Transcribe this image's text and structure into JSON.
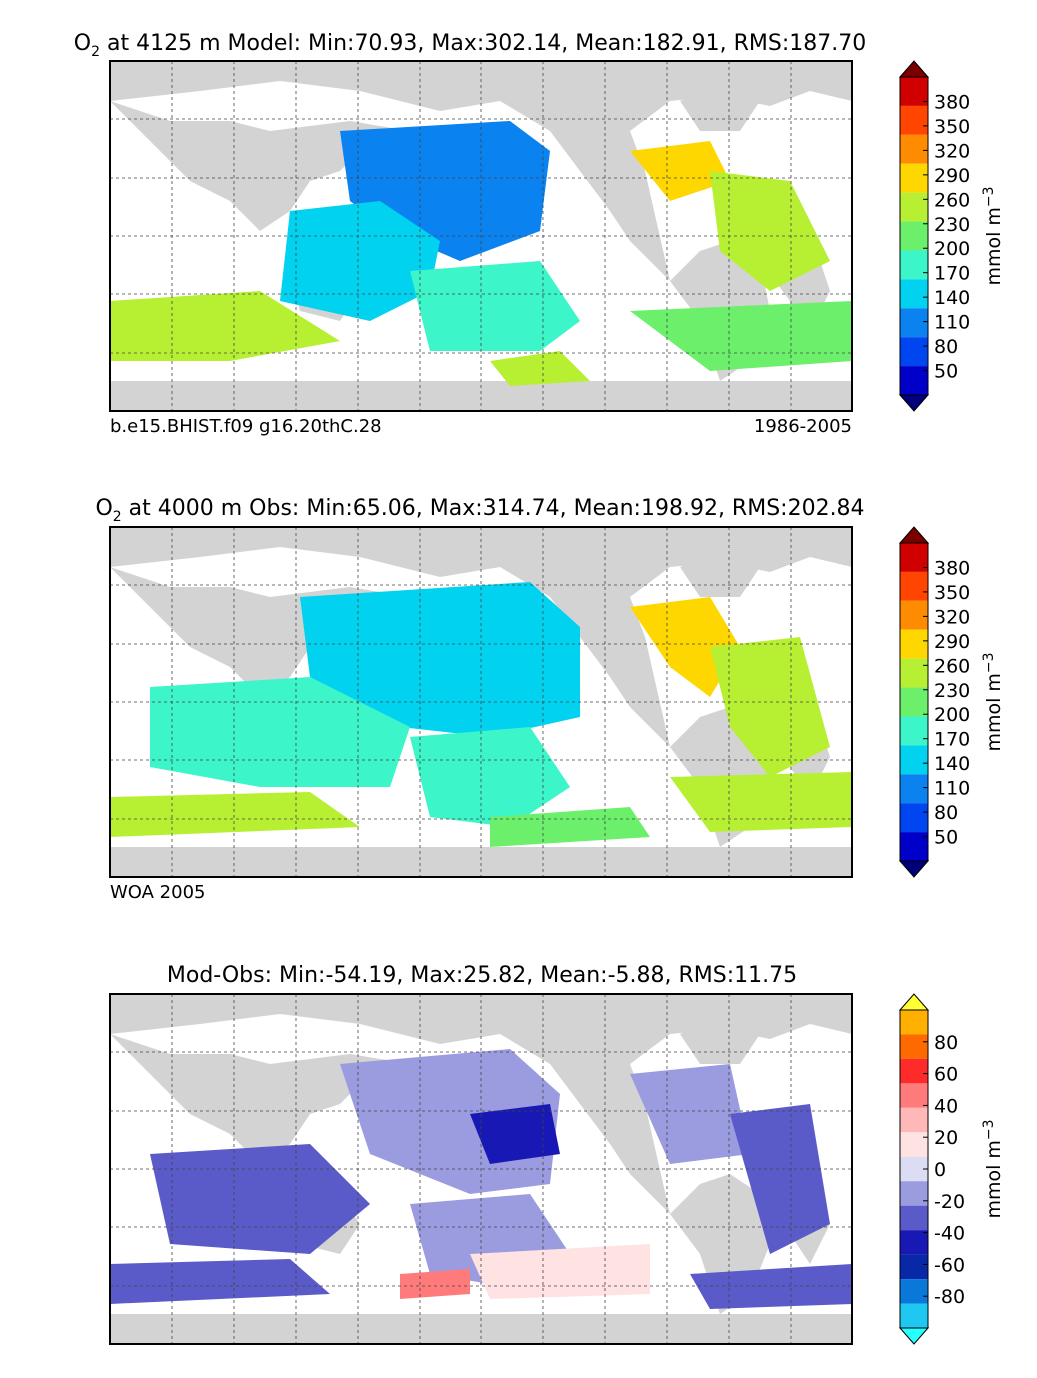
{
  "chart_data": [
    {
      "type": "heatmap",
      "title_prefix": "O",
      "title_sub": "2",
      "title": " at 4125 m Model: Min:70.93, Max:302.14, Mean:182.91, RMS:187.70",
      "caption_left": "b.e15.BHIST.f09 g16.20thC.28",
      "caption_right": "1986-2005",
      "stats": {
        "min": 70.93,
        "max": 302.14,
        "mean": 182.91,
        "rms": 187.7
      },
      "depth": "4125 m",
      "xlabel": "",
      "ylabel": "",
      "colorbar": {
        "label": "mmol m",
        "label_sup": "−3",
        "ticks": [
          "380",
          "350",
          "320",
          "290",
          "260",
          "230",
          "200",
          "170",
          "140",
          "110",
          "80",
          "50"
        ],
        "colors": [
          "#7a0000",
          "#d10000",
          "#ff4500",
          "#ff8c00",
          "#ffd700",
          "#b7f032",
          "#6cf06c",
          "#3cf5c8",
          "#00d2f0",
          "#0a82f0",
          "#0046f0",
          "#0000c8",
          "#00007a"
        ]
      }
    },
    {
      "type": "heatmap",
      "title_prefix": "O",
      "title_sub": "2",
      "title": " at 4000 m Obs: Min:65.06, Max:314.74, Mean:198.92, RMS:202.84",
      "caption_left": "WOA 2005",
      "caption_right": "",
      "stats": {
        "min": 65.06,
        "max": 314.74,
        "mean": 198.92,
        "rms": 202.84
      },
      "depth": "4000 m",
      "xlabel": "",
      "ylabel": "",
      "colorbar": {
        "label": "mmol m",
        "label_sup": "−3",
        "ticks": [
          "380",
          "350",
          "320",
          "290",
          "260",
          "230",
          "200",
          "170",
          "140",
          "110",
          "80",
          "50"
        ],
        "colors": [
          "#7a0000",
          "#d10000",
          "#ff4500",
          "#ff8c00",
          "#ffd700",
          "#b7f032",
          "#6cf06c",
          "#3cf5c8",
          "#00d2f0",
          "#0a82f0",
          "#0046f0",
          "#0000c8",
          "#00007a"
        ]
      }
    },
    {
      "type": "heatmap",
      "title_prefix": "",
      "title_sub": "",
      "title": "Mod-Obs: Min:-54.19, Max:25.82, Mean:-5.88, RMS:11.75",
      "caption_left": "",
      "caption_right": "",
      "stats": {
        "min": -54.19,
        "max": 25.82,
        "mean": -5.88,
        "rms": 11.75
      },
      "xlabel": "",
      "ylabel": "",
      "colorbar": {
        "label": "mmol m",
        "label_sup": "−3",
        "ticks": [
          "80",
          "60",
          "40",
          "20",
          "0",
          "-20",
          "-40",
          "-60",
          "-80"
        ],
        "colors": [
          "#ffff33",
          "#ffb000",
          "#ff6a00",
          "#ff2a2a",
          "#ff7a7a",
          "#ffb8b8",
          "#ffe2e2",
          "#dcdcf5",
          "#9b9be0",
          "#5a5ac8",
          "#1818b4",
          "#0828a8",
          "#0a78d8",
          "#1ec8f0",
          "#28ffff"
        ]
      }
    }
  ]
}
